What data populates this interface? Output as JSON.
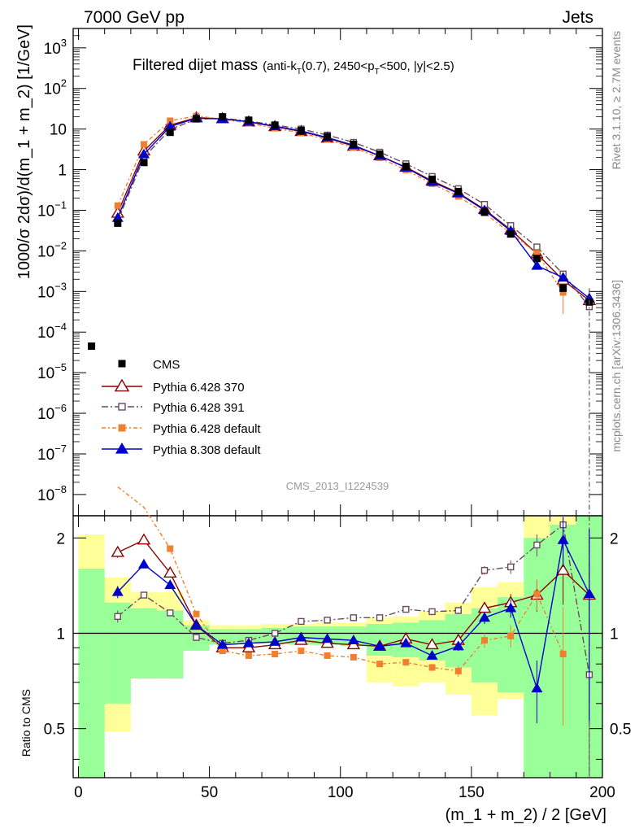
{
  "header": {
    "left": "7000 GeV pp",
    "right": "Jets",
    "side_top": "Rivet 3.1.10, ≥ 2.7M events",
    "side_bottom": "mcplots.cern.ch [arXiv:1306.3436]",
    "analysis": "CMS_2013_I1224539"
  },
  "chart_data": {
    "type": "scatter",
    "title": "Filtered dijet mass",
    "subtitle_parts": [
      "(anti-k",
      "T",
      "(0.7), 2450<p",
      "T",
      "<500, |y|<2.5)"
    ],
    "xlabel": "(m_1 + m_2) / 2 [GeV]",
    "ylabel_top": "1000/σ 2dσ)/d(m_1 + m_2) [1/GeV]",
    "ylabel_bottom": "Ratio to CMS",
    "xlim": [
      -2,
      200
    ],
    "ylim_top": [
      3e-09,
      3000
    ],
    "ylim_bottom": [
      0.35,
      2.35
    ],
    "log_y_top": true,
    "log_y_bottom": true,
    "x_ticks": [
      0,
      50,
      100,
      150,
      200
    ],
    "x_tick_labels": [
      "0",
      "50",
      "100",
      "150",
      "200"
    ],
    "top_tick_labels": [
      {
        "base": "10",
        "exp": "3"
      },
      {
        "base": "10",
        "exp": "2"
      },
      {
        "base": "10",
        "exp": ""
      },
      {
        "base": "1",
        "exp": ""
      },
      {
        "base": "10",
        "exp": "−1"
      },
      {
        "base": "10",
        "exp": "−2"
      },
      {
        "base": "10",
        "exp": "−3"
      },
      {
        "base": "10",
        "exp": "−4"
      },
      {
        "base": "10",
        "exp": "−5"
      },
      {
        "base": "10",
        "exp": "−6"
      },
      {
        "base": "10",
        "exp": "−7"
      },
      {
        "base": "10",
        "exp": "−8"
      }
    ],
    "ratio_ticks": [
      0.5,
      1,
      2
    ],
    "ratio_tick_labels": [
      "0.5",
      "1",
      "2"
    ],
    "x": [
      15,
      25,
      35,
      45,
      55,
      65,
      75,
      85,
      95,
      105,
      115,
      125,
      135,
      145,
      155,
      165,
      175,
      185,
      195
    ],
    "legend_position": "middle-left",
    "series": [
      {
        "name": "CMS",
        "color": "#000000",
        "marker": "filled-square",
        "points": [
          {
            "x": 5,
            "y": 4.5e-05
          },
          {
            "x": 15,
            "y": 0.048
          },
          {
            "x": 25,
            "y": 1.5
          },
          {
            "x": 35,
            "y": 8.3
          },
          {
            "x": 45,
            "y": 18
          },
          {
            "x": 55,
            "y": 20
          },
          {
            "x": 65,
            "y": 16.5
          },
          {
            "x": 75,
            "y": 12.5
          },
          {
            "x": 85,
            "y": 9.2
          },
          {
            "x": 95,
            "y": 6.5
          },
          {
            "x": 105,
            "y": 4.2
          },
          {
            "x": 115,
            "y": 2.4
          },
          {
            "x": 125,
            "y": 1.2
          },
          {
            "x": 135,
            "y": 0.58
          },
          {
            "x": 145,
            "y": 0.29
          },
          {
            "x": 155,
            "y": 0.09
          },
          {
            "x": 165,
            "y": 0.026
          },
          {
            "x": 175,
            "y": 0.0065
          },
          {
            "x": 185,
            "y": 0.0012
          },
          {
            "x": 195,
            "y": 0.00055
          }
        ]
      },
      {
        "name": "Pythia 6.428 370",
        "color": "#8b0000",
        "marker": "open-triangle",
        "dash": "",
        "y": [
          0.085,
          2.9,
          12.5,
          19,
          18,
          15,
          11.5,
          8.7,
          6,
          3.8,
          2.2,
          1.15,
          0.53,
          0.27,
          0.105,
          0.033,
          0.0085,
          0.0019,
          0.0006
        ],
        "ratio": [
          1.8,
          1.97,
          1.55,
          1.06,
          0.9,
          0.9,
          0.92,
          0.95,
          0.93,
          0.92,
          0.91,
          0.96,
          0.92,
          0.95,
          1.2,
          1.25,
          1.32,
          1.58,
          1.32
        ],
        "ratio_err": [
          0.07,
          0.04,
          0.03,
          0.02,
          0.01,
          0.01,
          0.01,
          0.01,
          0.01,
          0.01,
          0.01,
          0.02,
          0.02,
          0.03,
          0.05,
          0.08,
          0.15,
          0.35,
          0.8
        ]
      },
      {
        "name": "Pythia 6.428 391",
        "color": "#6b4a5e",
        "marker": "open-square",
        "dash": "8 3 2 3",
        "y": [
          0.055,
          2.0,
          9.8,
          17.5,
          18.5,
          15.7,
          12.6,
          10,
          7.1,
          4.7,
          2.7,
          1.4,
          0.68,
          0.34,
          0.14,
          0.042,
          0.0125,
          0.0027,
          0.00042
        ],
        "ratio": [
          1.13,
          1.32,
          1.16,
          0.97,
          0.93,
          0.95,
          1.0,
          1.09,
          1.1,
          1.12,
          1.12,
          1.19,
          1.17,
          1.18,
          1.58,
          1.62,
          1.9,
          2.2,
          0.74
        ],
        "ratio_err": [
          0.05,
          0.03,
          0.02,
          0.02,
          0.01,
          0.01,
          0.01,
          0.01,
          0.01,
          0.01,
          0.01,
          0.02,
          0.02,
          0.03,
          0.05,
          0.08,
          0.15,
          0.35,
          0.6
        ]
      },
      {
        "name": "Pythia 6.428 default",
        "color": "#f08030",
        "marker": "filled-square",
        "dash": "5 3 2 3",
        "y": [
          0.13,
          4.2,
          16,
          21,
          17.5,
          14,
          10.5,
          8,
          5.5,
          3.5,
          1.95,
          0.98,
          0.45,
          0.22,
          0.086,
          0.027,
          0.0087,
          0.00095,
          0.0
        ],
        "ratio": [
          3.0,
          2.5,
          1.85,
          1.15,
          0.88,
          0.85,
          0.86,
          0.88,
          0.85,
          0.84,
          0.8,
          0.81,
          0.78,
          0.76,
          0.95,
          0.98,
          1.33,
          0.86,
          null
        ],
        "ratio_err": [
          0.05,
          0.04,
          0.03,
          0.02,
          0.01,
          0.01,
          0.01,
          0.01,
          0.01,
          0.01,
          0.01,
          0.02,
          0.02,
          0.03,
          0.05,
          0.08,
          0.15,
          0.35,
          0.0
        ]
      },
      {
        "name": "Pythia 8.308 default",
        "color": "#0000cc",
        "marker": "filled-triangle",
        "dash": "",
        "y": [
          0.065,
          2.4,
          11.5,
          18.5,
          17.8,
          15.2,
          11.8,
          9,
          6.2,
          4,
          2.2,
          1.12,
          0.5,
          0.26,
          0.1,
          0.031,
          0.0043,
          0.0022,
          0.00068
        ],
        "ratio": [
          1.35,
          1.65,
          1.42,
          1.06,
          0.92,
          0.93,
          0.94,
          0.97,
          0.96,
          0.95,
          0.91,
          0.93,
          0.85,
          0.91,
          1.12,
          1.2,
          0.67,
          1.97,
          1.33
        ],
        "ratio_err": [
          0.06,
          0.04,
          0.03,
          0.02,
          0.01,
          0.01,
          0.01,
          0.01,
          0.01,
          0.01,
          0.01,
          0.02,
          0.02,
          0.03,
          0.05,
          0.08,
          0.15,
          0.35,
          0.8
        ]
      }
    ],
    "bands": {
      "stat_color": "#99ff99",
      "total_color": "#ffff99",
      "x_edges": [
        0,
        5,
        10,
        20,
        30,
        40,
        50,
        60,
        70,
        80,
        90,
        100,
        110,
        120,
        130,
        140,
        150,
        160,
        170,
        180,
        190,
        200
      ],
      "green": [
        [
          0.35,
          1.6
        ],
        [
          0.35,
          1.6
        ],
        [
          0.6,
          1.25
        ],
        [
          0.72,
          1.2
        ],
        [
          0.72,
          1.18
        ],
        [
          0.88,
          1.06
        ],
        [
          0.92,
          1.03
        ],
        [
          0.93,
          1.03
        ],
        [
          0.93,
          1.04
        ],
        [
          0.92,
          1.05
        ],
        [
          0.92,
          1.05
        ],
        [
          0.91,
          1.05
        ],
        [
          0.85,
          1.07
        ],
        [
          0.84,
          1.08
        ],
        [
          0.82,
          1.1
        ],
        [
          0.78,
          1.15
        ],
        [
          0.7,
          1.2
        ],
        [
          0.65,
          1.3
        ],
        [
          0.35,
          2.0
        ],
        [
          0.35,
          2.2
        ],
        [
          0.35,
          2.35
        ]
      ],
      "yellow": [
        [
          0.35,
          2.05
        ],
        [
          0.35,
          2.05
        ],
        [
          0.49,
          1.5
        ],
        [
          0.78,
          1.35
        ],
        [
          0.83,
          1.35
        ],
        [
          0.93,
          1.1
        ],
        [
          0.95,
          1.06
        ],
        [
          0.95,
          1.06
        ],
        [
          0.95,
          1.07
        ],
        [
          0.94,
          1.07
        ],
        [
          0.94,
          1.08
        ],
        [
          0.93,
          1.08
        ],
        [
          0.7,
          1.12
        ],
        [
          0.68,
          1.13
        ],
        [
          0.7,
          1.17
        ],
        [
          0.64,
          1.25
        ],
        [
          0.55,
          1.4
        ],
        [
          0.62,
          1.45
        ],
        [
          0.35,
          2.35
        ],
        [
          0.35,
          2.35
        ],
        [
          0.35,
          2.35
        ]
      ]
    }
  }
}
